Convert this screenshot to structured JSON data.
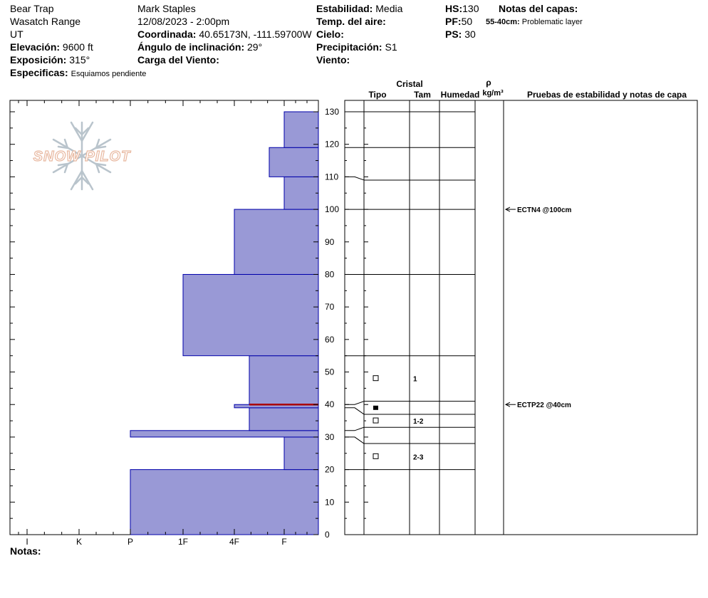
{
  "header": {
    "location": "Bear Trap",
    "range": "Wasatch Range",
    "state": "UT",
    "elevation_label": "Elevación:",
    "elevation": "9600 ft",
    "aspect_label": "Exposición:",
    "aspect": "315°",
    "specifics_label": "Especificas:",
    "specifics": "Esquiamos pendiente",
    "observer": "Mark Staples",
    "datetime": "12/08/2023 - 2:00pm",
    "coord_label": "Coordinada:",
    "coords": "40.65173N, -111.59700W",
    "slope_label": "Ángulo de inclinación:",
    "slope": "29°",
    "wind_load_label": "Carga del Viento:",
    "stability_label": "Estabilidad:",
    "stability": "Media",
    "air_temp_label": "Temp. del aire:",
    "sky_label": "Cielo:",
    "precip_label": "Precipitación:",
    "precip": "S1",
    "wind_label": "Viento:",
    "hs_label": "HS:",
    "hs": "130",
    "pf_label": "PF:",
    "pf": "50",
    "ps_label": "PS:",
    "ps": "30",
    "layer_notes_label": "Notas del capas:",
    "layer_note_depth": "55-40cm:",
    "layer_note_text": "Problematic layer",
    "notes_label": "Notas:"
  },
  "logo_text": "SNOW PILOT",
  "columns": {
    "cristal": "Cristal",
    "tipo": "Tipo",
    "tam": "Tam",
    "humedad": "Humedad",
    "rho": "ρ",
    "density_unit": "kg/m³",
    "tests": "Pruebas de estabilidad y notas de capa"
  },
  "colors": {
    "fill": "#9999d6",
    "stroke": "#0000aa",
    "weak_layer": "#aa0000"
  },
  "chart_data": {
    "type": "bar",
    "orientation": "horizontal",
    "x_categories": [
      "I",
      "K",
      "P",
      "1F",
      "4F",
      "F"
    ],
    "xlabel": "",
    "ylabel": "",
    "ylim": [
      0,
      130
    ],
    "y_ticks": [
      0,
      10,
      20,
      30,
      40,
      50,
      60,
      70,
      80,
      90,
      100,
      110,
      120,
      130
    ],
    "x_levels": {
      "I": 0,
      "K": 1,
      "P": 2,
      "1F": 3,
      "4F": 4,
      "F": 5
    },
    "layers": [
      {
        "bottom": 0,
        "top": 20,
        "hardness": 2
      },
      {
        "bottom": 20,
        "top": 30,
        "hardness": 5
      },
      {
        "bottom": 30,
        "top": 32,
        "hardness": 2
      },
      {
        "bottom": 32,
        "top": 39,
        "hardness": 4.3
      },
      {
        "bottom": 39,
        "top": 40,
        "hardness": 4
      },
      {
        "bottom": 40,
        "top": 55,
        "hardness": 4.3
      },
      {
        "bottom": 55,
        "top": 80,
        "hardness": 3
      },
      {
        "bottom": 80,
        "top": 100,
        "hardness": 4
      },
      {
        "bottom": 100,
        "top": 110,
        "hardness": 5
      },
      {
        "bottom": 110,
        "top": 119,
        "hardness": 4.7
      },
      {
        "bottom": 119,
        "top": 130,
        "hardness": 5
      }
    ],
    "weak_layer_depth": 40,
    "layer_boundaries": [
      20,
      28,
      33,
      37,
      41,
      55,
      80,
      100,
      109,
      119,
      130
    ],
    "grains": [
      {
        "depth": 48,
        "type": "open-square",
        "size": "1"
      },
      {
        "depth": 39,
        "type": "filled-square",
        "size": ""
      },
      {
        "depth": 35,
        "type": "open-square",
        "size": "1-2"
      },
      {
        "depth": 24,
        "type": "open-square",
        "size": "2-3"
      }
    ],
    "stability_tests": [
      {
        "depth": 100,
        "label": "ECTN4 @100cm"
      },
      {
        "depth": 40,
        "label": "ECTP22 @40cm"
      }
    ]
  }
}
